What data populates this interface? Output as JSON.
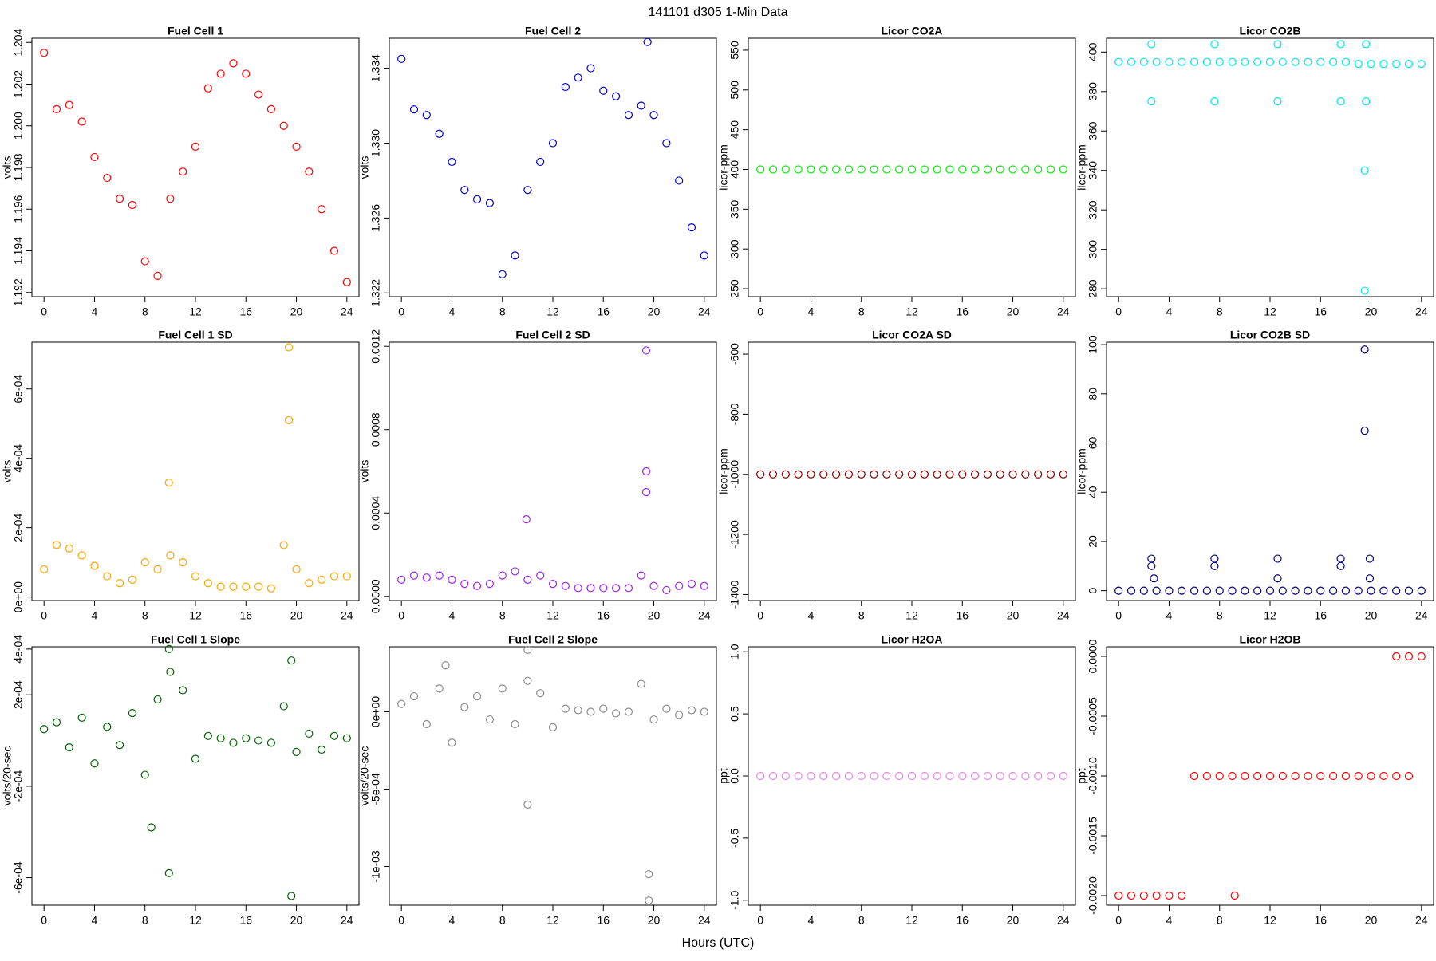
{
  "title": "141101   d305   1-Min Data",
  "x_label": "Hours (UTC)",
  "chart_data": [
    {
      "type": "scatter",
      "title": "Fuel Cell 1",
      "y_label": "volts",
      "color": "#ff0000",
      "x": [
        0,
        1,
        2,
        3,
        4,
        5,
        6,
        7,
        8,
        9,
        10,
        11,
        12,
        13,
        14,
        15,
        16,
        17,
        18,
        19,
        20,
        21,
        22,
        23,
        24
      ],
      "values": [
        1.2035,
        1.2008,
        1.201,
        1.2002,
        1.1985,
        1.1975,
        1.1965,
        1.1962,
        1.1935,
        1.1928,
        1.1965,
        1.1978,
        1.199,
        1.2018,
        1.2025,
        1.203,
        1.2025,
        1.2015,
        1.2008,
        1.2,
        1.199,
        1.1978,
        1.196,
        1.194,
        1.1925
      ],
      "xlim": [
        -0.96,
        24.96
      ],
      "xticks": [
        0,
        4,
        8,
        12,
        16,
        20,
        24
      ],
      "ylim": [
        1.1918,
        1.2042
      ],
      "yticks": [
        1.192,
        1.194,
        1.196,
        1.198,
        {
          "value": 1.2,
          "label": "1.200"
        },
        1.202,
        1.204
      ]
    },
    {
      "type": "scatter",
      "title": "Fuel Cell 2",
      "y_label": "volts",
      "color": "#0000cd",
      "x": [
        0,
        1,
        2,
        3,
        4,
        5,
        6,
        7,
        8,
        9,
        10,
        11,
        12,
        13,
        14,
        15,
        16,
        17,
        18,
        19,
        20,
        21,
        22,
        23,
        24,
        19.5
      ],
      "values": [
        1.3345,
        1.3318,
        1.3315,
        1.3305,
        1.329,
        1.3275,
        1.327,
        1.3268,
        1.323,
        1.324,
        1.3275,
        1.329,
        1.33,
        1.333,
        1.3335,
        1.334,
        1.3328,
        1.3325,
        1.3315,
        1.332,
        1.3315,
        1.33,
        1.328,
        1.3255,
        1.324,
        1.3354
      ],
      "xlim": [
        -0.96,
        24.96
      ],
      "xticks": [
        0,
        4,
        8,
        12,
        16,
        20,
        24
      ],
      "ylim": [
        1.3218,
        1.3356
      ],
      "yticks": [
        1.322,
        1.326,
        {
          "value": 1.33,
          "label": "1.330"
        },
        1.334
      ]
    },
    {
      "type": "scatter",
      "title": "Licor CO2A",
      "y_label": "licor-ppm",
      "color": "#00ee00",
      "x": [
        0,
        1,
        2,
        3,
        4,
        5,
        6,
        7,
        8,
        9,
        10,
        11,
        12,
        13,
        14,
        15,
        16,
        17,
        18,
        19,
        20,
        21,
        22,
        23,
        24
      ],
      "values": [
        400,
        400,
        400,
        400,
        400,
        400,
        400,
        400,
        400,
        400,
        400,
        400,
        400,
        400,
        400,
        400,
        400,
        400,
        400,
        400,
        400,
        400,
        400,
        400,
        400
      ],
      "xlim": [
        -0.96,
        24.96
      ],
      "xticks": [
        0,
        4,
        8,
        12,
        16,
        20,
        24
      ],
      "ylim": [
        240,
        565
      ],
      "yticks": [
        250,
        300,
        350,
        400,
        450,
        500,
        550
      ]
    },
    {
      "type": "scatter",
      "title": "Licor CO2B",
      "y_label": "licor-ppm",
      "color": "#00e5ee",
      "x": [
        0,
        1,
        2,
        3,
        4,
        5,
        6,
        7,
        8,
        9,
        10,
        11,
        12,
        13,
        14,
        15,
        16,
        17,
        18,
        19,
        20,
        21,
        22,
        23,
        24,
        2.6,
        2.6,
        7.6,
        7.6,
        12.6,
        12.6,
        17.6,
        17.6,
        19.6,
        19.6,
        19.5,
        19.5
      ],
      "values": [
        395,
        395,
        395,
        395,
        395,
        395,
        395,
        395,
        395,
        395,
        395,
        395,
        395,
        395,
        395,
        395,
        395,
        395,
        395,
        394,
        394,
        394,
        394,
        394,
        394,
        404,
        375,
        404,
        375,
        404,
        375,
        404,
        375,
        404,
        375,
        340,
        279
      ],
      "xlim": [
        -0.96,
        24.96
      ],
      "xticks": [
        0,
        4,
        8,
        12,
        16,
        20,
        24
      ],
      "ylim": [
        276,
        407
      ],
      "yticks": [
        280,
        300,
        320,
        340,
        360,
        380,
        400
      ]
    },
    {
      "type": "scatter",
      "title": "Fuel Cell 1 SD",
      "y_label": "volts",
      "color": "#ffa500",
      "x": [
        0,
        1,
        2,
        3,
        4,
        5,
        6,
        7,
        8,
        9,
        10,
        11,
        12,
        13,
        14,
        15,
        16,
        17,
        18,
        19,
        20,
        21,
        22,
        23,
        24,
        9.9,
        19.4,
        19.4
      ],
      "values": [
        8e-05,
        0.00015,
        0.00014,
        0.00012,
        9e-05,
        6e-05,
        4e-05,
        5e-05,
        0.0001,
        8e-05,
        0.00012,
        0.0001,
        6e-05,
        4e-05,
        3e-05,
        3e-05,
        3e-05,
        3e-05,
        2.5e-05,
        0.00015,
        8e-05,
        4e-05,
        5e-05,
        6e-05,
        6e-05,
        0.00033,
        0.00072,
        0.00051
      ],
      "xlim": [
        -0.96,
        24.96
      ],
      "xticks": [
        0,
        4,
        8,
        12,
        16,
        20,
        24
      ],
      "ylim": [
        -1e-05,
        0.000735
      ],
      "yticks": [
        {
          "value": 0,
          "label": "0e+00"
        },
        {
          "value": 0.0002,
          "label": "2e-04"
        },
        {
          "value": 0.0004,
          "label": "4e-04"
        },
        {
          "value": 0.0006,
          "label": "6e-04"
        }
      ]
    },
    {
      "type": "scatter",
      "title": "Fuel Cell 2 SD",
      "y_label": "volts",
      "color": "#a020f0",
      "x": [
        0,
        1,
        2,
        3,
        4,
        5,
        6,
        7,
        8,
        9,
        10,
        11,
        12,
        13,
        14,
        15,
        16,
        17,
        18,
        19,
        20,
        21,
        22,
        23,
        24,
        9.9,
        19.4,
        19.4,
        19.4
      ],
      "values": [
        8e-05,
        0.0001,
        9e-05,
        0.0001,
        8e-05,
        6e-05,
        5e-05,
        6e-05,
        0.0001,
        0.00012,
        8e-05,
        0.0001,
        6e-05,
        5e-05,
        4e-05,
        4e-05,
        4e-05,
        4e-05,
        4e-05,
        0.0001,
        5e-05,
        3e-05,
        5e-05,
        6e-05,
        5e-05,
        0.00037,
        0.00118,
        0.0006,
        0.0005
      ],
      "xlim": [
        -0.96,
        24.96
      ],
      "xticks": [
        0,
        4,
        8,
        12,
        16,
        20,
        24
      ],
      "ylim": [
        -2e-05,
        0.00122
      ],
      "yticks": [
        {
          "value": 0,
          "label": "0.0000"
        },
        0.0004,
        0.0008,
        0.0012
      ]
    },
    {
      "type": "scatter",
      "title": "Licor CO2A SD",
      "y_label": "licor-ppm",
      "color": "#8b0000",
      "x": [
        0,
        1,
        2,
        3,
        4,
        5,
        6,
        7,
        8,
        9,
        10,
        11,
        12,
        13,
        14,
        15,
        16,
        17,
        18,
        19,
        20,
        21,
        22,
        23,
        24
      ],
      "values": [
        -1000,
        -1000,
        -1000,
        -1000,
        -1000,
        -1000,
        -1000,
        -1000,
        -1000,
        -1000,
        -1000,
        -1000,
        -1000,
        -1000,
        -1000,
        -1000,
        -1000,
        -1000,
        -1000,
        -1000,
        -1000,
        -1000,
        -1000,
        -1000,
        -1000
      ],
      "xlim": [
        -0.96,
        24.96
      ],
      "xticks": [
        0,
        4,
        8,
        12,
        16,
        20,
        24
      ],
      "ylim": [
        -1420,
        -560
      ],
      "yticks": [
        -1400,
        -1200,
        -1000,
        -800,
        -600
      ]
    },
    {
      "type": "scatter",
      "title": "Licor CO2B SD",
      "y_label": "licor-ppm",
      "color": "#000080",
      "x": [
        0,
        1,
        2,
        3,
        4,
        5,
        6,
        7,
        8,
        9,
        10,
        11,
        12,
        13,
        14,
        15,
        16,
        17,
        18,
        19,
        20,
        21,
        22,
        23,
        24,
        2.6,
        2.6,
        2.8,
        7.6,
        7.6,
        12.6,
        12.6,
        17.6,
        17.6,
        19.5,
        19.5,
        19.9,
        19.9
      ],
      "values": [
        0,
        0,
        0,
        0,
        0,
        0,
        0,
        0,
        0,
        0,
        0,
        0,
        0,
        0,
        0,
        0,
        0,
        0,
        0,
        0,
        0,
        0,
        0,
        0,
        0,
        13,
        10,
        5,
        13,
        10,
        13,
        5,
        13,
        10,
        98,
        65,
        13,
        5
      ],
      "xlim": [
        -0.96,
        24.96
      ],
      "xticks": [
        0,
        4,
        8,
        12,
        16,
        20,
        24
      ],
      "ylim": [
        -4,
        101
      ],
      "yticks": [
        0,
        20,
        40,
        60,
        80,
        100
      ]
    },
    {
      "type": "scatter",
      "title": "Fuel Cell 1 Slope",
      "y_label": "volts/20-sec",
      "color": "#006400",
      "x": [
        0,
        1,
        2,
        3,
        4,
        5,
        6,
        7,
        8,
        9,
        10,
        11,
        12,
        13,
        14,
        15,
        16,
        17,
        18,
        19,
        20,
        21,
        22,
        23,
        24,
        9.9,
        9.9,
        19.6,
        8.5,
        19.6
      ],
      "values": [
        5e-05,
        8e-05,
        -3e-05,
        0.0001,
        -0.0001,
        6e-05,
        -2e-05,
        0.00012,
        -0.00015,
        0.00018,
        0.0003,
        0.00022,
        -8e-05,
        2e-05,
        1e-05,
        -1e-05,
        1e-05,
        0,
        -1e-05,
        0.00015,
        -5e-05,
        3e-05,
        -4e-05,
        2e-05,
        1e-05,
        0.0004,
        -0.00058,
        -0.00068,
        -0.00038,
        0.00035
      ],
      "xlim": [
        -0.96,
        24.96
      ],
      "xticks": [
        0,
        4,
        8,
        12,
        16,
        20,
        24
      ],
      "ylim": [
        -0.00072,
        0.00041
      ],
      "yticks": [
        {
          "value": -0.0006,
          "label": "-6e-04"
        },
        {
          "value": -0.0002,
          "label": "-2e-04"
        },
        {
          "value": 0.0002,
          "label": "2e-04"
        },
        {
          "value": 0.0004,
          "label": "4e-04"
        }
      ]
    },
    {
      "type": "scatter",
      "title": "Fuel Cell 2 Slope",
      "y_label": "volts/20-sec",
      "color": "#8c8c8c",
      "x": [
        0,
        1,
        2,
        3,
        4,
        5,
        6,
        7,
        8,
        9,
        10,
        11,
        12,
        13,
        14,
        15,
        16,
        17,
        18,
        19,
        20,
        21,
        22,
        23,
        24,
        10,
        10,
        19.6,
        19.6,
        3.5
      ],
      "values": [
        5e-05,
        0.0001,
        -8e-05,
        0.00015,
        -0.0002,
        3e-05,
        0.0001,
        -5e-05,
        0.00015,
        -8e-05,
        0.0002,
        0.00012,
        -0.0001,
        2e-05,
        1e-05,
        0,
        2e-05,
        -1e-05,
        0,
        0.00018,
        -5e-05,
        2e-05,
        -2e-05,
        1e-05,
        0,
        0.0004,
        -0.0006,
        -0.00122,
        -0.00105,
        0.0003
      ],
      "xlim": [
        -0.96,
        24.96
      ],
      "xticks": [
        0,
        4,
        8,
        12,
        16,
        20,
        24
      ],
      "ylim": [
        -0.00125,
        0.00042
      ],
      "yticks": [
        {
          "value": -0.001,
          "label": "-1e-03"
        },
        {
          "value": -0.0005,
          "label": "-5e-04"
        },
        {
          "value": 0,
          "label": "0e+00"
        }
      ]
    },
    {
      "type": "scatter",
      "title": "Licor H2OA",
      "y_label": "ppt",
      "color": "#ee82ee",
      "x": [
        0,
        1,
        2,
        3,
        4,
        5,
        6,
        7,
        8,
        9,
        10,
        11,
        12,
        13,
        14,
        15,
        16,
        17,
        18,
        19,
        20,
        21,
        22,
        23,
        24
      ],
      "values": [
        0,
        0,
        0,
        0,
        0,
        0,
        0,
        0,
        0,
        0,
        0,
        0,
        0,
        0,
        0,
        0,
        0,
        0,
        0,
        0,
        0,
        0,
        0,
        0,
        0
      ],
      "xlim": [
        -0.96,
        24.96
      ],
      "xticks": [
        0,
        4,
        8,
        12,
        16,
        20,
        24
      ],
      "ylim": [
        -1.04,
        1.04
      ],
      "yticks": [
        {
          "value": -1,
          "label": "-1.0"
        },
        -0.5,
        {
          "value": 0,
          "label": "0.0"
        },
        0.5,
        {
          "value": 1,
          "label": "1.0"
        }
      ]
    },
    {
      "type": "scatter",
      "title": "Licor H2OB",
      "y_label": "ppt",
      "color": "#ff0000",
      "x": [
        0,
        1,
        2,
        3,
        4,
        5,
        6,
        7,
        8,
        9,
        10,
        11,
        12,
        13,
        14,
        15,
        16,
        17,
        18,
        19,
        20,
        21,
        22,
        23,
        24,
        22,
        23,
        9.2
      ],
      "values": [
        -0.002,
        -0.002,
        -0.002,
        -0.002,
        -0.002,
        -0.002,
        -0.001,
        -0.001,
        -0.001,
        -0.001,
        -0.001,
        -0.001,
        -0.001,
        -0.001,
        -0.001,
        -0.001,
        -0.001,
        -0.001,
        -0.001,
        -0.001,
        -0.001,
        -0.001,
        0,
        0,
        0,
        -0.001,
        -0.001,
        -0.002
      ],
      "xlim": [
        -0.96,
        24.96
      ],
      "xticks": [
        0,
        4,
        8,
        12,
        16,
        20,
        24
      ],
      "ylim": [
        -0.00208,
        8e-05
      ],
      "yticks": [
        {
          "value": -0.002,
          "label": "-0.0020"
        },
        -0.0015,
        {
          "value": -0.001,
          "label": "-0.0010"
        },
        -0.0005,
        {
          "value": 0,
          "label": "0.0000"
        }
      ]
    }
  ]
}
